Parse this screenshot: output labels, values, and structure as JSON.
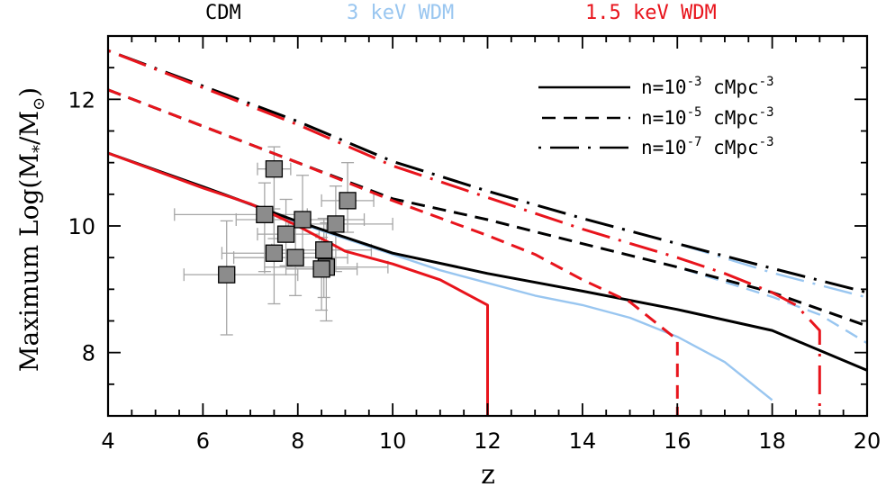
{
  "header": {
    "cdm": "CDM",
    "wdm3": "3 keV WDM",
    "wdm15": "1.5 keV WDM"
  },
  "colors": {
    "cdm": "#000000",
    "wdm3": "#99c6f0",
    "wdm15": "#e8141c",
    "points_fill": "#8c8c8c",
    "errorbars": "#a6a6a6"
  },
  "axes": {
    "xlabel": "z",
    "ylabel_prefix": "Maximum Log(M",
    "ylabel_sub1": "*",
    "ylabel_mid": "/M",
    "ylabel_sub2": "⊙",
    "ylabel_suffix": ")"
  },
  "legend": [
    {
      "base": "n=10",
      "exp": "-3",
      "unit": " cMpc",
      "unit_exp": "-3",
      "style": "solid"
    },
    {
      "base": "n=10",
      "exp": "-5",
      "unit": " cMpc",
      "unit_exp": "-3",
      "style": "short-dash"
    },
    {
      "base": "n=10",
      "exp": "-7",
      "unit": " cMpc",
      "unit_exp": "-3",
      "style": "long-dash"
    }
  ],
  "chart_data": {
    "type": "line",
    "xlim": [
      4,
      20
    ],
    "ylim": [
      7,
      13
    ],
    "xticks": [
      4,
      6,
      8,
      10,
      12,
      14,
      16,
      18,
      20
    ],
    "yticks": [
      8,
      10,
      12
    ],
    "xticks_minor_step": 0.5,
    "yticks_minor_step": 0.5,
    "series": [
      {
        "model": "CDM",
        "color": "cdm",
        "dash": "solid",
        "x": [
          4,
          6,
          8,
          10,
          12,
          14,
          16,
          18,
          20
        ],
        "y": [
          11.15,
          10.62,
          10.07,
          9.57,
          9.25,
          8.97,
          8.68,
          8.35,
          7.72
        ]
      },
      {
        "model": "CDM",
        "color": "cdm",
        "dash": "short-dash",
        "x": [
          4,
          8,
          10,
          12,
          14,
          16,
          18,
          20
        ],
        "y": [
          12.15,
          11.0,
          10.43,
          10.1,
          9.72,
          9.35,
          8.95,
          8.42
        ]
      },
      {
        "model": "CDM",
        "color": "cdm",
        "dash": "long-dash",
        "x": [
          4,
          8,
          10,
          12,
          14,
          16,
          18,
          20
        ],
        "y": [
          12.77,
          11.65,
          11.02,
          10.55,
          10.12,
          9.72,
          9.33,
          8.95
        ]
      },
      {
        "model": "3 keV WDM",
        "color": "wdm3",
        "dash": "solid",
        "x": [
          4,
          6,
          8,
          10,
          11,
          12,
          13,
          14,
          15,
          16,
          17,
          18
        ],
        "y": [
          11.15,
          10.62,
          10.05,
          9.55,
          9.3,
          9.1,
          8.9,
          8.75,
          8.55,
          8.25,
          7.85,
          7.25
        ]
      },
      {
        "model": "3 keV WDM",
        "color": "wdm3",
        "dash": "short-dash",
        "x": [
          4,
          8,
          10,
          12,
          14,
          16,
          18,
          19,
          20
        ],
        "y": [
          12.15,
          11.0,
          10.43,
          10.1,
          9.72,
          9.35,
          8.88,
          8.6,
          8.15
        ]
      },
      {
        "model": "3 keV WDM",
        "color": "wdm3",
        "dash": "long-dash",
        "x": [
          4,
          8,
          10,
          12,
          14,
          16,
          18,
          20
        ],
        "y": [
          12.77,
          11.65,
          11.02,
          10.55,
          10.12,
          9.72,
          9.26,
          8.87
        ]
      },
      {
        "model": "1.5 keV WDM",
        "color": "wdm15",
        "dash": "solid",
        "x": [
          4,
          6,
          7,
          8,
          9,
          10,
          11,
          12,
          12
        ],
        "y": [
          11.15,
          10.6,
          10.35,
          10.0,
          9.6,
          9.4,
          9.15,
          8.75,
          7.0
        ]
      },
      {
        "model": "1.5 keV WDM",
        "color": "wdm15",
        "dash": "short-dash",
        "x": [
          4,
          8,
          10,
          12,
          13,
          14,
          15,
          16,
          16
        ],
        "y": [
          12.15,
          11.0,
          10.4,
          9.85,
          9.55,
          9.15,
          8.8,
          8.2,
          7.0
        ]
      },
      {
        "model": "1.5 keV WDM",
        "color": "wdm15",
        "dash": "long-dash",
        "x": [
          4,
          8,
          10,
          12,
          14,
          16,
          17,
          18,
          18.5,
          19,
          19
        ],
        "y": [
          12.77,
          11.6,
          10.95,
          10.45,
          9.95,
          9.5,
          9.25,
          8.95,
          8.75,
          8.35,
          7.0
        ]
      }
    ],
    "observations": [
      {
        "x": 7.5,
        "y": 10.9,
        "xerr": [
          0.35,
          0.35
        ],
        "yerr": [
          1.1,
          0.35
        ]
      },
      {
        "x": 7.3,
        "y": 10.18,
        "xerr": [
          1.9,
          0.9
        ],
        "yerr": [
          0.9,
          0.5
        ]
      },
      {
        "x": 8.1,
        "y": 10.1,
        "xerr": [
          1.4,
          1.3
        ],
        "yerr": [
          0.6,
          0.7
        ]
      },
      {
        "x": 9.05,
        "y": 10.4,
        "xerr": [
          0.55,
          0.55
        ],
        "yerr": [
          0.5,
          0.6
        ]
      },
      {
        "x": 8.8,
        "y": 10.03,
        "xerr": [
          1.0,
          1.2
        ],
        "yerr": [
          0.75,
          0.6
        ]
      },
      {
        "x": 7.75,
        "y": 9.87,
        "xerr": [
          0.6,
          0.7
        ],
        "yerr": [
          0.5,
          0.55
        ]
      },
      {
        "x": 7.5,
        "y": 9.57,
        "xerr": [
          1.1,
          1.0
        ],
        "yerr": [
          0.8,
          0.7
        ]
      },
      {
        "x": 7.95,
        "y": 9.5,
        "xerr": [
          1.3,
          1.1
        ],
        "yerr": [
          0.6,
          0.6
        ]
      },
      {
        "x": 8.55,
        "y": 9.62,
        "xerr": [
          1.1,
          1.0
        ],
        "yerr": [
          0.75,
          0.5
        ]
      },
      {
        "x": 8.6,
        "y": 9.35,
        "xerr": [
          1.3,
          1.3
        ],
        "yerr": [
          0.85,
          0.7
        ]
      },
      {
        "x": 8.5,
        "y": 9.32,
        "xerr": [
          0.75,
          0.75
        ],
        "yerr": [
          0.65,
          0.5
        ]
      },
      {
        "x": 6.5,
        "y": 9.23,
        "xerr": [
          0.9,
          1.5
        ],
        "yerr": [
          0.95,
          0.85
        ]
      }
    ]
  }
}
